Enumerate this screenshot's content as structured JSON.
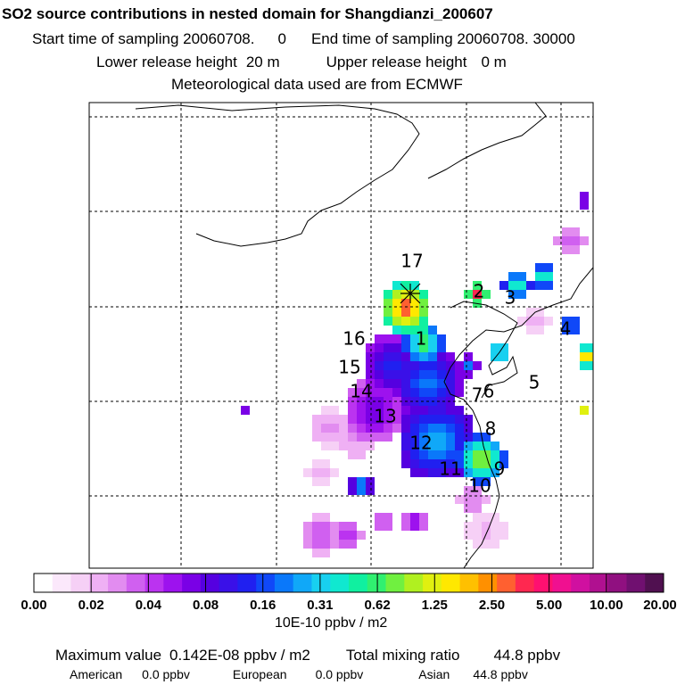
{
  "header": {
    "title": "SO2 source contributions in nested domain for Shangdianzi_200607",
    "start_label": "Start time of sampling 20060708.",
    "start_hour": "0",
    "end_label": "End time of sampling 20060708. 30000",
    "lower_label": "Lower release height",
    "lower_value": "20 m",
    "upper_label": "Upper release height",
    "upper_value": "0 m",
    "met_label": "Meteorological data used are from ECMWF"
  },
  "chart_data": {
    "type": "heatmap",
    "title": "SO2 source contributions in nested domain for Shangdianzi_200607",
    "units": "10E-10 ppbv / m2",
    "colorbar_ticks": [
      "0.00",
      "0.02",
      "0.04",
      "0.08",
      "0.16",
      "0.31",
      "0.62",
      "1.25",
      "2.50",
      "5.00",
      "10.00",
      "20.00"
    ],
    "colorbar_colors": [
      "#ffffff",
      "#fbe8fb",
      "#f6d0f6",
      "#efb0f4",
      "#e28cf0",
      "#d060f0",
      "#bb33f0",
      "#9d12ee",
      "#7a00e6",
      "#5500e0",
      "#3a10e8",
      "#2020f0",
      "#1048f8",
      "#0a78fa",
      "#10a8f8",
      "#18d0f0",
      "#10e8d0",
      "#10f0a0",
      "#30f070",
      "#70f040",
      "#b0f020",
      "#e0f010",
      "#ffe800",
      "#ffc000",
      "#ff9000",
      "#ff6030",
      "#ff2850",
      "#ff1070",
      "#f01090",
      "#d010a0",
      "#b01090",
      "#901080",
      "#701070",
      "#501050"
    ],
    "site_markers": [
      "1",
      "2",
      "3",
      "4",
      "5",
      "6",
      "7",
      "8",
      "9",
      "10",
      "11",
      "12",
      "13",
      "14",
      "15",
      "16",
      "17"
    ],
    "receptor": "Shangdianzi"
  },
  "footer": {
    "max_label": "Maximum value",
    "max_value": "0.142E-08 ppbv / m2",
    "total_label": "Total mixing ratio",
    "total_value": "44.8 ppbv",
    "regions": [
      {
        "name": "American",
        "value": "0.0 ppbv"
      },
      {
        "name": "European",
        "value": "0.0 ppbv"
      },
      {
        "name": "Asian",
        "value": "44.8 ppbv"
      }
    ]
  }
}
